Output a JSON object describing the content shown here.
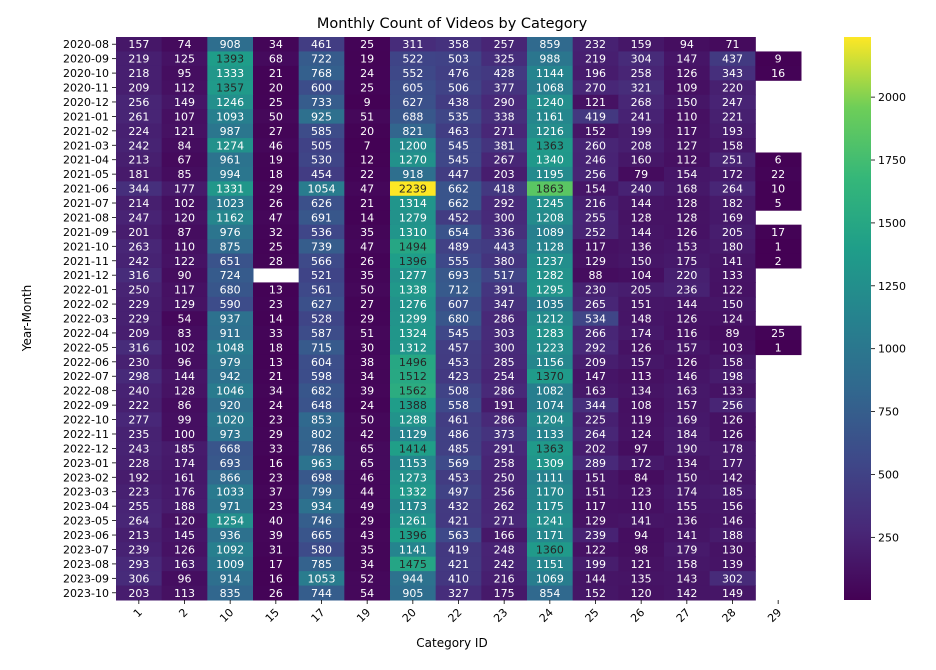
{
  "chart_data": {
    "type": "heatmap",
    "title": "Monthly Count of Videos by Category",
    "xlabel": "Category ID",
    "ylabel": "Year-Month",
    "colormap": "viridis",
    "vmin": 1,
    "vmax": 2239,
    "colorbar_ticks": [
      250,
      500,
      750,
      1000,
      1250,
      1500,
      1750,
      2000
    ],
    "columns": [
      "1",
      "2",
      "10",
      "15",
      "17",
      "19",
      "20",
      "22",
      "23",
      "24",
      "25",
      "26",
      "27",
      "28",
      "29"
    ],
    "rows": [
      "2020-08",
      "2020-09",
      "2020-10",
      "2020-11",
      "2020-12",
      "2021-01",
      "2021-02",
      "2021-03",
      "2021-04",
      "2021-05",
      "2021-06",
      "2021-07",
      "2021-08",
      "2021-09",
      "2021-10",
      "2021-11",
      "2021-12",
      "2022-01",
      "2022-02",
      "2022-03",
      "2022-04",
      "2022-05",
      "2022-06",
      "2022-07",
      "2022-08",
      "2022-09",
      "2022-10",
      "2022-11",
      "2022-12",
      "2023-01",
      "2023-02",
      "2023-03",
      "2023-04",
      "2023-05",
      "2023-06",
      "2023-07",
      "2023-08",
      "2023-09",
      "2023-10"
    ],
    "values": [
      [
        157,
        74,
        908,
        34,
        461,
        25,
        311,
        358,
        257,
        859,
        232,
        159,
        94,
        71,
        null
      ],
      [
        219,
        125,
        1393,
        68,
        722,
        19,
        522,
        503,
        325,
        988,
        219,
        304,
        147,
        437,
        9
      ],
      [
        218,
        95,
        1333,
        21,
        768,
        24,
        552,
        476,
        428,
        1144,
        196,
        258,
        126,
        343,
        16
      ],
      [
        209,
        112,
        1357,
        20,
        600,
        25,
        605,
        506,
        377,
        1068,
        270,
        321,
        109,
        220,
        null
      ],
      [
        256,
        149,
        1246,
        25,
        733,
        9,
        627,
        438,
        290,
        1240,
        121,
        268,
        150,
        247,
        null
      ],
      [
        261,
        107,
        1093,
        50,
        925,
        51,
        688,
        535,
        338,
        1161,
        419,
        241,
        110,
        221,
        null
      ],
      [
        224,
        121,
        987,
        27,
        585,
        20,
        821,
        463,
        271,
        1216,
        152,
        199,
        117,
        193,
        null
      ],
      [
        242,
        84,
        1274,
        46,
        505,
        7,
        1200,
        545,
        381,
        1363,
        260,
        208,
        127,
        158,
        null
      ],
      [
        213,
        67,
        961,
        19,
        530,
        12,
        1270,
        545,
        267,
        1340,
        246,
        160,
        112,
        251,
        6
      ],
      [
        181,
        85,
        994,
        18,
        454,
        22,
        918,
        447,
        203,
        1195,
        256,
        79,
        154,
        172,
        22
      ],
      [
        344,
        177,
        1331,
        29,
        1054,
        47,
        2239,
        662,
        418,
        1863,
        154,
        240,
        168,
        264,
        10
      ],
      [
        214,
        102,
        1023,
        26,
        626,
        21,
        1314,
        662,
        292,
        1245,
        216,
        144,
        128,
        182,
        5
      ],
      [
        247,
        120,
        1162,
        47,
        691,
        14,
        1279,
        452,
        300,
        1208,
        255,
        128,
        128,
        169,
        null
      ],
      [
        201,
        87,
        976,
        32,
        536,
        35,
        1310,
        654,
        336,
        1089,
        252,
        144,
        126,
        205,
        17
      ],
      [
        263,
        110,
        875,
        25,
        739,
        47,
        1494,
        489,
        443,
        1128,
        117,
        136,
        153,
        180,
        1
      ],
      [
        242,
        122,
        651,
        28,
        566,
        26,
        1396,
        555,
        380,
        1237,
        129,
        150,
        175,
        141,
        2
      ],
      [
        316,
        90,
        724,
        null,
        521,
        35,
        1277,
        693,
        517,
        1282,
        88,
        104,
        220,
        133,
        null
      ],
      [
        250,
        117,
        680,
        13,
        561,
        50,
        1338,
        712,
        391,
        1295,
        230,
        205,
        236,
        122,
        null
      ],
      [
        229,
        129,
        590,
        23,
        627,
        27,
        1276,
        607,
        347,
        1035,
        265,
        151,
        144,
        150,
        null
      ],
      [
        229,
        54,
        937,
        14,
        528,
        29,
        1299,
        680,
        286,
        1212,
        534,
        148,
        126,
        124,
        null
      ],
      [
        209,
        83,
        911,
        33,
        587,
        51,
        1324,
        545,
        303,
        1283,
        266,
        174,
        116,
        89,
        25
      ],
      [
        316,
        102,
        1048,
        18,
        715,
        30,
        1312,
        457,
        300,
        1223,
        292,
        126,
        157,
        103,
        1
      ],
      [
        230,
        96,
        979,
        13,
        604,
        38,
        1496,
        453,
        285,
        1156,
        209,
        157,
        126,
        158,
        null
      ],
      [
        298,
        144,
        942,
        21,
        598,
        34,
        1512,
        423,
        254,
        1370,
        147,
        113,
        146,
        198,
        null
      ],
      [
        240,
        128,
        1046,
        34,
        682,
        39,
        1562,
        508,
        286,
        1082,
        163,
        134,
        163,
        133,
        null
      ],
      [
        222,
        86,
        920,
        24,
        648,
        24,
        1388,
        558,
        191,
        1074,
        344,
        108,
        157,
        256,
        null
      ],
      [
        277,
        99,
        1020,
        23,
        853,
        50,
        1288,
        461,
        286,
        1204,
        225,
        119,
        169,
        126,
        null
      ],
      [
        235,
        100,
        973,
        29,
        802,
        42,
        1129,
        486,
        373,
        1133,
        264,
        124,
        184,
        126,
        null
      ],
      [
        243,
        185,
        668,
        33,
        786,
        65,
        1414,
        485,
        291,
        1363,
        202,
        97,
        190,
        178,
        null
      ],
      [
        228,
        174,
        693,
        16,
        963,
        65,
        1153,
        569,
        258,
        1309,
        289,
        172,
        134,
        177,
        null
      ],
      [
        192,
        161,
        866,
        23,
        698,
        46,
        1273,
        453,
        250,
        1111,
        151,
        84,
        150,
        142,
        null
      ],
      [
        223,
        176,
        1033,
        37,
        799,
        44,
        1332,
        497,
        256,
        1170,
        151,
        123,
        174,
        185,
        null
      ],
      [
        255,
        188,
        971,
        23,
        934,
        49,
        1173,
        432,
        262,
        1175,
        117,
        110,
        155,
        156,
        null
      ],
      [
        264,
        120,
        1254,
        40,
        746,
        29,
        1261,
        421,
        271,
        1241,
        129,
        141,
        136,
        146,
        null
      ],
      [
        213,
        145,
        936,
        39,
        665,
        43,
        1396,
        563,
        166,
        1171,
        239,
        94,
        141,
        188,
        null
      ],
      [
        239,
        126,
        1092,
        31,
        580,
        35,
        1141,
        419,
        248,
        1360,
        122,
        98,
        179,
        130,
        null
      ],
      [
        293,
        163,
        1009,
        17,
        785,
        34,
        1475,
        421,
        242,
        1151,
        199,
        121,
        158,
        139,
        null
      ],
      [
        306,
        96,
        914,
        16,
        1053,
        52,
        944,
        410,
        216,
        1069,
        144,
        135,
        143,
        302,
        null
      ],
      [
        203,
        113,
        835,
        26,
        744,
        54,
        905,
        327,
        175,
        854,
        152,
        120,
        142,
        149,
        null
      ]
    ]
  }
}
